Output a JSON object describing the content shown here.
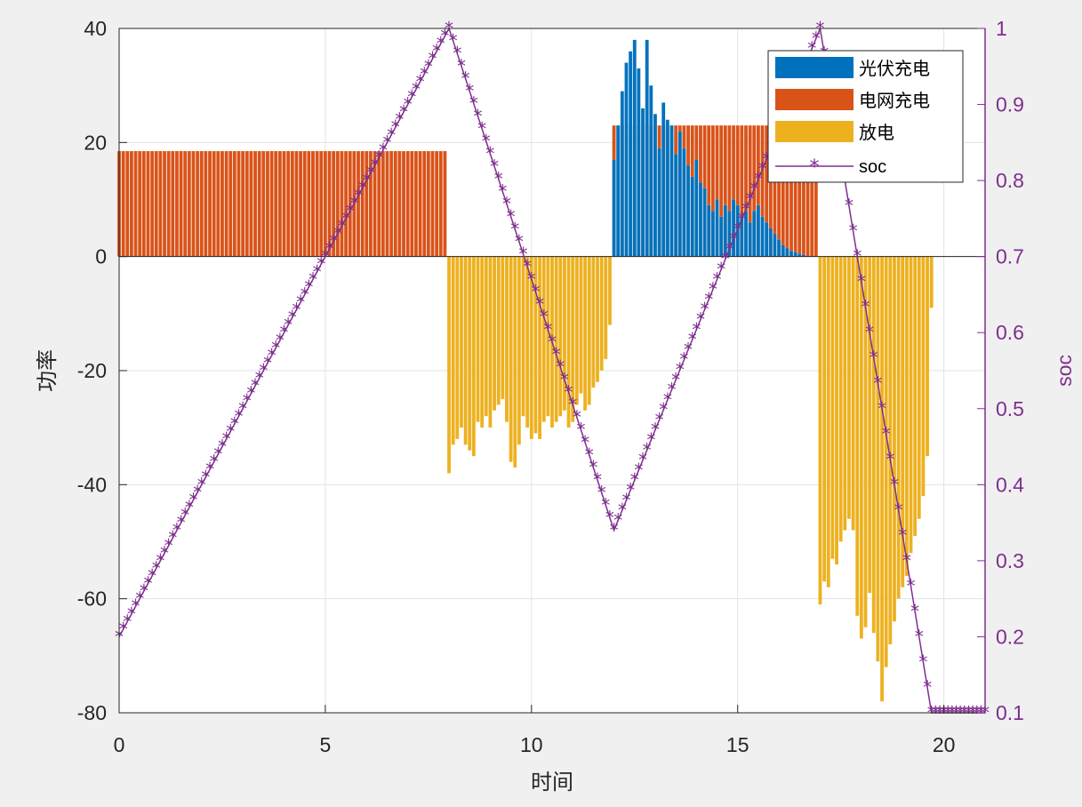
{
  "chart_data": {
    "type": "bar",
    "xlabel": "时间",
    "ylabel": "功率",
    "ylabel_right": "soc",
    "xlim": [
      0,
      21
    ],
    "ylim": [
      -80,
      40
    ],
    "ylim_right": [
      0.1,
      1.0
    ],
    "xticks": [
      "0",
      "5",
      "10",
      "15",
      "20"
    ],
    "yticks_left": [
      "40",
      "20",
      "0",
      "-20",
      "-40",
      "-60",
      "-80"
    ],
    "yticks_right": [
      "1",
      "0.9",
      "0.8",
      "0.7",
      "0.6",
      "0.5",
      "0.4",
      "0.3",
      "0.2",
      "0.1"
    ],
    "grid": true,
    "legend_position": "top-right",
    "bar_width": 0.085,
    "colors": {
      "pv": "#0072BD",
      "grid": "#D95319",
      "discharge": "#EDB120",
      "soc": "#7E2F8E"
    },
    "series": [
      {
        "name": "光伏充电",
        "type": "bar",
        "color": "#0072BD",
        "x": [
          12.0,
          12.1,
          12.2,
          12.3,
          12.4,
          12.5,
          12.6,
          12.7,
          12.8,
          12.9,
          13.0,
          13.1,
          13.2,
          13.3,
          13.4,
          13.5,
          13.6,
          13.7,
          13.8,
          13.9,
          14.0,
          14.1,
          14.2,
          14.3,
          14.4,
          14.5,
          14.6,
          14.7,
          14.8,
          14.9,
          15.0,
          15.1,
          15.2,
          15.3,
          15.4,
          15.5,
          15.6,
          15.7,
          15.8,
          15.9,
          16.0,
          16.1,
          16.2,
          16.3,
          16.4,
          16.5,
          16.6
        ],
        "values": [
          17,
          23,
          29,
          34,
          36,
          38,
          33,
          26,
          38,
          30,
          25,
          19,
          27,
          24,
          23,
          18,
          22,
          19,
          16,
          14,
          17,
          13,
          12,
          9,
          8,
          10,
          7,
          9,
          8,
          10,
          9,
          7,
          8,
          6,
          8,
          9,
          7,
          6,
          5,
          4,
          3,
          2,
          1.5,
          1,
          0.8,
          0.5,
          0.3
        ]
      },
      {
        "name": "电网充电",
        "type": "bar",
        "color": "#D95319",
        "segments": [
          {
            "x_from": 0.0,
            "x_to": 7.9,
            "step": 0.1,
            "value": 18.5
          },
          {
            "x_from": 12.0,
            "x_to": 16.9,
            "step": 0.1,
            "value": 23
          }
        ]
      },
      {
        "name": "放电",
        "type": "bar",
        "color": "#EDB120",
        "x": [
          8.0,
          8.1,
          8.2,
          8.3,
          8.4,
          8.5,
          8.6,
          8.7,
          8.8,
          8.9,
          9.0,
          9.1,
          9.2,
          9.3,
          9.4,
          9.5,
          9.6,
          9.7,
          9.8,
          9.9,
          10.0,
          10.1,
          10.2,
          10.3,
          10.4,
          10.5,
          10.6,
          10.7,
          10.8,
          10.9,
          11.0,
          11.1,
          11.2,
          11.3,
          11.4,
          11.5,
          11.6,
          11.7,
          11.8,
          11.9,
          17.0,
          17.1,
          17.2,
          17.3,
          17.4,
          17.5,
          17.6,
          17.7,
          17.8,
          17.9,
          18.0,
          18.1,
          18.2,
          18.3,
          18.4,
          18.5,
          18.6,
          18.7,
          18.8,
          18.9,
          19.0,
          19.1,
          19.2,
          19.3,
          19.4,
          19.5,
          19.6,
          19.7
        ],
        "values": [
          -38,
          -33,
          -32,
          -30,
          -33,
          -34,
          -35,
          -29,
          -30,
          -28,
          -30,
          -27,
          -26,
          -25,
          -29,
          -36,
          -37,
          -33,
          -28,
          -30,
          -32,
          -31,
          -32,
          -29,
          -28,
          -30,
          -29,
          -28,
          -27,
          -30,
          -29,
          -26,
          -24,
          -27,
          -26,
          -23,
          -22,
          -20,
          -18,
          -12,
          -61,
          -57,
          -58,
          -53,
          -54,
          -50,
          -48,
          -46,
          -48,
          -63,
          -67,
          -65,
          -59,
          -66,
          -71,
          -78,
          -72,
          -68,
          -64,
          -60,
          -58,
          -56,
          -52,
          -49,
          -46,
          -42,
          -35,
          -9
        ]
      },
      {
        "name": "soc",
        "type": "line",
        "marker": "*",
        "axis": "right",
        "color": "#7E2F8E",
        "x": [
          0,
          8,
          12,
          17,
          19.7,
          21
        ],
        "values": [
          0.2,
          1.0,
          0.34,
          1.0,
          0.1,
          0.1
        ]
      }
    ],
    "legend": [
      "光伏充电",
      "电网充电",
      "放电",
      "soc"
    ]
  }
}
